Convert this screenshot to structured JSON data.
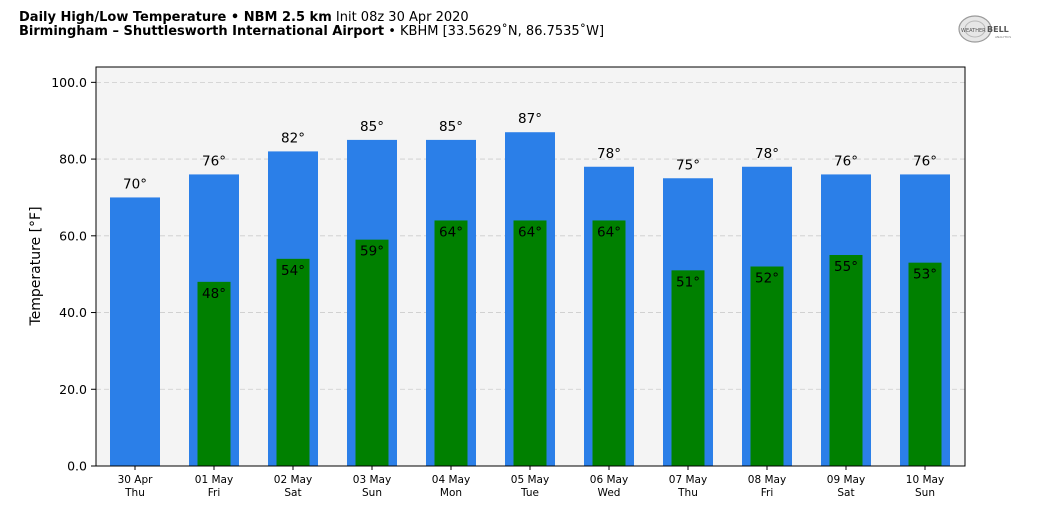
{
  "header": {
    "title_bold": "Daily High/Low Temperature • NBM 2.5 km",
    "title_init": "Init 08z 30 Apr 2020",
    "location_bold": "Birmingham – Shuttlesworth International Airport",
    "location_rest": "• KBHM [33.5629˚N, 86.7535˚W]"
  },
  "logo": {
    "text_a": "WEATHER",
    "text_b": "BELL",
    "text_c": "ANALYTICS"
  },
  "colors": {
    "high": "#2b7fe8",
    "low": "#008000",
    "plot_bg": "#f4f4f4",
    "grid": "#cccccc"
  },
  "chart_data": {
    "type": "bar",
    "ylabel": "Temperature [°F]",
    "ylim": [
      0,
      100
    ],
    "yticks": [
      0,
      20,
      40,
      60,
      80,
      100
    ],
    "ytick_labels": [
      "0.0",
      "20.0",
      "40.0",
      "60.0",
      "80.0",
      "100.0"
    ],
    "grid": true,
    "categories": [
      {
        "date": "30 Apr",
        "day": "Thu"
      },
      {
        "date": "01 May",
        "day": "Fri"
      },
      {
        "date": "02 May",
        "day": "Sat"
      },
      {
        "date": "03 May",
        "day": "Sun"
      },
      {
        "date": "04 May",
        "day": "Mon"
      },
      {
        "date": "05 May",
        "day": "Tue"
      },
      {
        "date": "06 May",
        "day": "Wed"
      },
      {
        "date": "07 May",
        "day": "Thu"
      },
      {
        "date": "08 May",
        "day": "Fri"
      },
      {
        "date": "09 May",
        "day": "Sat"
      },
      {
        "date": "10 May",
        "day": "Sun"
      }
    ],
    "series": [
      {
        "key": "high",
        "values": [
          70,
          76,
          82,
          85,
          85,
          87,
          78,
          75,
          78,
          76,
          76
        ],
        "labels": [
          "70°",
          "76°",
          "82°",
          "85°",
          "85°",
          "87°",
          "78°",
          "75°",
          "78°",
          "76°",
          "76°"
        ]
      },
      {
        "key": "low",
        "values": [
          null,
          48,
          54,
          59,
          64,
          64,
          64,
          51,
          52,
          55,
          53
        ],
        "labels": [
          "",
          "48°",
          "54°",
          "59°",
          "64°",
          "64°",
          "64°",
          "51°",
          "52°",
          "55°",
          "53°"
        ]
      }
    ]
  }
}
